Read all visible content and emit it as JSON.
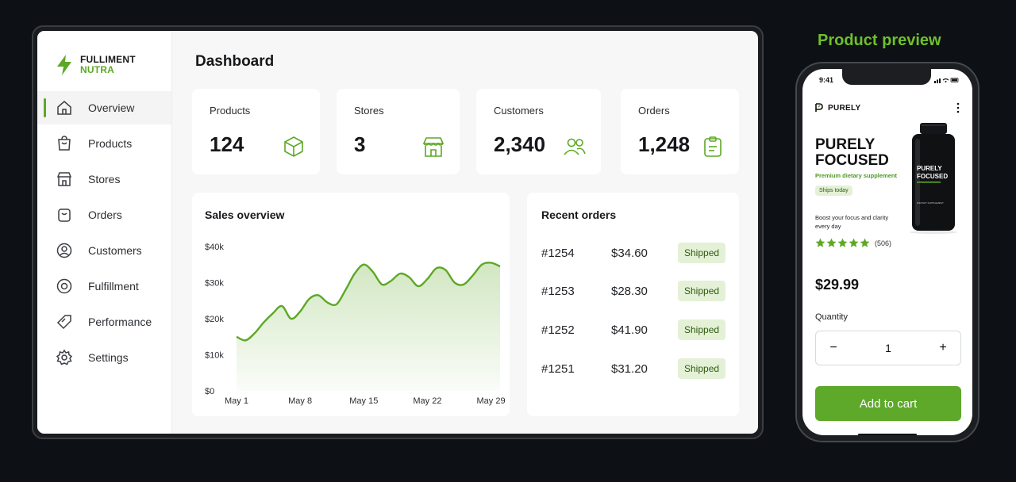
{
  "brand": {
    "line1": "FULLIMENT",
    "line2": "NUTRA"
  },
  "colors": {
    "accent": "#5da825",
    "accent_light": "#e4f1d7",
    "preview_title": "#6fc02c"
  },
  "sidebar": {
    "items": [
      {
        "label": "Overview",
        "icon": "home-icon",
        "active": true
      },
      {
        "label": "Products",
        "icon": "bag-icon"
      },
      {
        "label": "Stores",
        "icon": "store-icon"
      },
      {
        "label": "Orders",
        "icon": "basket-icon"
      },
      {
        "label": "Customers",
        "icon": "user-icon"
      },
      {
        "label": "Fulfillment",
        "icon": "target-icon"
      },
      {
        "label": "Performance",
        "icon": "tag-icon"
      },
      {
        "label": "Settings",
        "icon": "gear-icon"
      }
    ]
  },
  "main": {
    "title": "Dashboard",
    "stats": [
      {
        "label": "Products",
        "value": "124",
        "icon": "box-icon"
      },
      {
        "label": "Stores",
        "value": "3",
        "icon": "store-icon"
      },
      {
        "label": "Customers",
        "value": "2,340",
        "icon": "users-icon"
      },
      {
        "label": "Orders",
        "value": "1,248",
        "icon": "clipboard-icon"
      }
    ],
    "sales_title": "Sales overview",
    "orders_title": "Recent orders",
    "orders": [
      {
        "id": "#1254",
        "amount": "$34.60",
        "status": "Shipped"
      },
      {
        "id": "#1253",
        "amount": "$28.30",
        "status": "Shipped"
      },
      {
        "id": "#1252",
        "amount": "$41.90",
        "status": "Shipped"
      },
      {
        "id": "#1251",
        "amount": "$31.20",
        "status": "Shipped"
      }
    ]
  },
  "chart_data": {
    "type": "area",
    "x_ticks": [
      "May 1",
      "May 8",
      "May 15",
      "May 22",
      "May 29"
    ],
    "y_ticks": [
      "$0",
      "$10k",
      "$20k",
      "$30k",
      "$40k"
    ],
    "ylim": [
      0,
      40000
    ],
    "xlim": [
      1,
      30
    ],
    "series": [
      {
        "x": [
          1,
          2,
          3,
          4,
          5,
          6,
          7,
          8,
          9,
          10,
          11,
          12,
          13,
          14,
          15,
          16,
          17,
          18,
          19,
          20,
          21,
          22,
          23,
          24,
          25,
          26,
          27,
          28,
          29,
          30
        ],
        "values": [
          15000,
          14000,
          16000,
          19000,
          21500,
          23500,
          20000,
          22000,
          25500,
          26500,
          24500,
          24000,
          28000,
          32500,
          35000,
          33000,
          29500,
          30500,
          32500,
          31500,
          29000,
          31000,
          34000,
          33500,
          30000,
          29500,
          32000,
          35000,
          35500,
          34500
        ]
      }
    ],
    "grid": false
  },
  "phone": {
    "preview_title": "Product preview",
    "time": "9:41",
    "brand": "PURELY",
    "title": "PURELY FOCUSED",
    "subtitle": "Premium dietary supplement",
    "ships": "Ships today",
    "description": "Boost your focus and clarity every day",
    "rating": 5,
    "reviews": "(506)",
    "bottle_label_1": "PURELY",
    "bottle_label_2": "FOCUSED",
    "bottle_label_3": "DIETARY SUPPLEMENT",
    "price": "$29.99",
    "quantity_label": "Quantity",
    "quantity": "1",
    "minus": "−",
    "plus": "+",
    "cart_label": "Add to cart"
  }
}
